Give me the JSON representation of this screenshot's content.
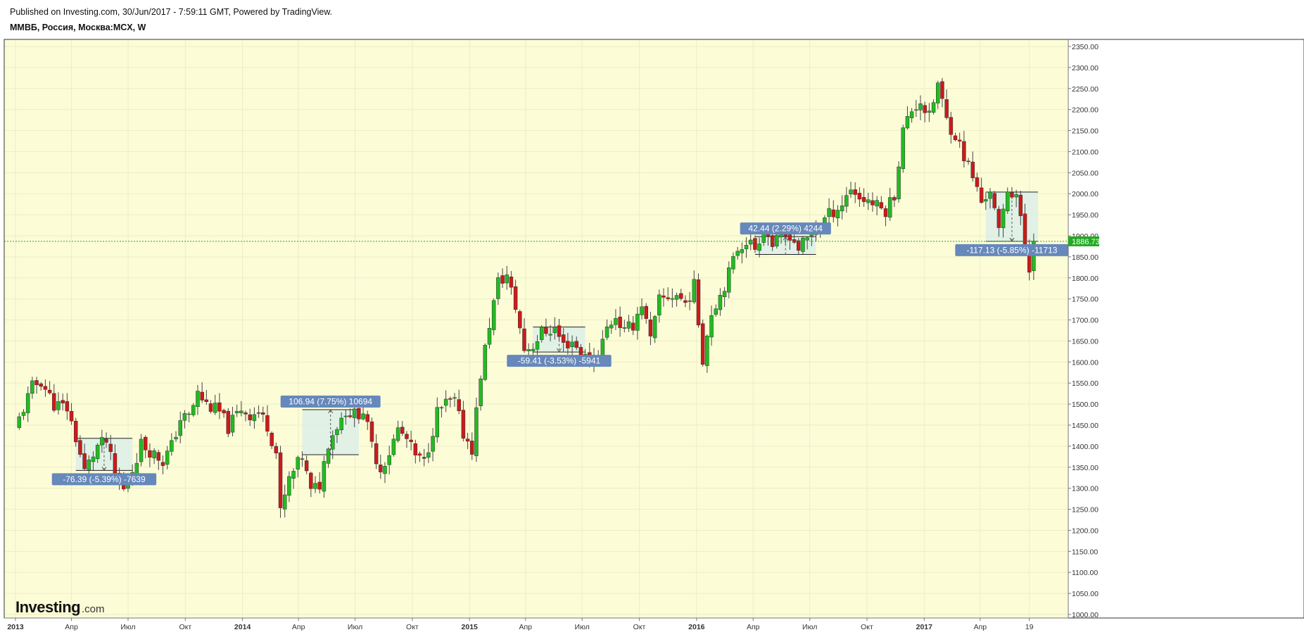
{
  "header": {
    "published": "Published on Investing.com, 30/Jun/2017 - 7:59:11 GMT, Powered by TradingView.",
    "symbol": "ММВБ, Россия, Москва:MCX, W"
  },
  "logo": {
    "main": "Investing",
    "suffix": ".com"
  },
  "colors": {
    "plot_background": "#fcfcd7",
    "grid": "#ededc6",
    "up": "#22bb22",
    "down": "#cc1a1a",
    "wick": "#444444",
    "last_price": "#22aa22",
    "measure_fill": "#dcefe8",
    "measure_label": "#6688bb"
  },
  "chart_data": {
    "type": "candlestick",
    "interval": "W",
    "ylim": [
      1000,
      2360
    ],
    "y_ticks": [
      1000,
      1050,
      1100,
      1150,
      1200,
      1250,
      1300,
      1350,
      1400,
      1450,
      1500,
      1550,
      1600,
      1650,
      1700,
      1750,
      1800,
      1850,
      1900,
      1950,
      2000,
      2050,
      2100,
      2150,
      2200,
      2250,
      2300,
      2350
    ],
    "y_tick_labels": [
      "1000.00",
      "1050.00",
      "1100.00",
      "1150.00",
      "1200.00",
      "1250.00",
      "1300.00",
      "1350.00",
      "1400.00",
      "1450.00",
      "1500.00",
      "1550.00",
      "1600.00",
      "1650.00",
      "1700.00",
      "1750.00",
      "1800.00",
      "1850.00",
      "1900.00",
      "1950.00",
      "2000.00",
      "2050.00",
      "2100.00",
      "2150.00",
      "2200.00",
      "2250.00",
      "2300.00",
      "2350.00"
    ],
    "x_range": [
      "2013-01-01",
      "2017-08-07"
    ],
    "x_ticks": [
      {
        "date": "2013-01-01",
        "label": "2013",
        "bold": true
      },
      {
        "date": "2013-04-01",
        "label": "Апр",
        "bold": false
      },
      {
        "date": "2013-07-01",
        "label": "Июл",
        "bold": false
      },
      {
        "date": "2013-10-01",
        "label": "Окт",
        "bold": false
      },
      {
        "date": "2014-01-01",
        "label": "2014",
        "bold": true
      },
      {
        "date": "2014-04-01",
        "label": "Апр",
        "bold": false
      },
      {
        "date": "2014-07-01",
        "label": "Июл",
        "bold": false
      },
      {
        "date": "2014-10-01",
        "label": "Окт",
        "bold": false
      },
      {
        "date": "2015-01-01",
        "label": "2015",
        "bold": true
      },
      {
        "date": "2015-04-01",
        "label": "Апр",
        "bold": false
      },
      {
        "date": "2015-07-01",
        "label": "Июл",
        "bold": false
      },
      {
        "date": "2015-10-01",
        "label": "Окт",
        "bold": false
      },
      {
        "date": "2016-01-01",
        "label": "2016",
        "bold": true
      },
      {
        "date": "2016-04-01",
        "label": "Апр",
        "bold": false
      },
      {
        "date": "2016-07-01",
        "label": "Июл",
        "bold": false
      },
      {
        "date": "2016-10-01",
        "label": "Окт",
        "bold": false
      },
      {
        "date": "2017-01-01",
        "label": "2017",
        "bold": true
      },
      {
        "date": "2017-04-01",
        "label": "Апр",
        "bold": false
      },
      {
        "date": "2017-06-19",
        "label": "19",
        "bold": false
      }
    ],
    "last_price": 1886.73,
    "last_price_label": "1886.73",
    "close_path": [
      [
        "2013-01-07",
        1465
      ],
      [
        "2013-01-28",
        1540
      ],
      [
        "2013-02-11",
        1555
      ],
      [
        "2013-03-04",
        1500
      ],
      [
        "2013-03-25",
        1490
      ],
      [
        "2013-04-08",
        1420
      ],
      [
        "2013-04-22",
        1340
      ],
      [
        "2013-05-13",
        1400
      ],
      [
        "2013-05-27",
        1410
      ],
      [
        "2013-06-10",
        1330
      ],
      [
        "2013-06-24",
        1295
      ],
      [
        "2013-07-08",
        1345
      ],
      [
        "2013-07-22",
        1405
      ],
      [
        "2013-08-05",
        1390
      ],
      [
        "2013-08-26",
        1365
      ],
      [
        "2013-09-09",
        1400
      ],
      [
        "2013-09-23",
        1465
      ],
      [
        "2013-10-07",
        1470
      ],
      [
        "2013-10-21",
        1525
      ],
      [
        "2013-11-04",
        1500
      ],
      [
        "2013-11-25",
        1480
      ],
      [
        "2013-12-09",
        1445
      ],
      [
        "2013-12-30",
        1490
      ],
      [
        "2014-01-13",
        1475
      ],
      [
        "2014-01-27",
        1480
      ],
      [
        "2014-02-10",
        1450
      ],
      [
        "2014-02-24",
        1385
      ],
      [
        "2014-03-03",
        1240
      ],
      [
        "2014-03-17",
        1320
      ],
      [
        "2014-04-07",
        1375
      ],
      [
        "2014-04-21",
        1290
      ],
      [
        "2014-05-05",
        1310
      ],
      [
        "2014-05-19",
        1410
      ],
      [
        "2014-06-02",
        1450
      ],
      [
        "2014-06-16",
        1485
      ],
      [
        "2014-06-30",
        1475
      ],
      [
        "2014-07-14",
        1485
      ],
      [
        "2014-07-28",
        1400
      ],
      [
        "2014-08-11",
        1345
      ],
      [
        "2014-08-25",
        1385
      ],
      [
        "2014-09-08",
        1440
      ],
      [
        "2014-09-22",
        1415
      ],
      [
        "2014-10-06",
        1375
      ],
      [
        "2014-10-20",
        1360
      ],
      [
        "2014-11-10",
        1480
      ],
      [
        "2014-11-24",
        1500
      ],
      [
        "2014-12-08",
        1505
      ],
      [
        "2014-12-22",
        1430
      ],
      [
        "2015-01-05",
        1395
      ],
      [
        "2015-01-19",
        1570
      ],
      [
        "2015-02-02",
        1690
      ],
      [
        "2015-02-16",
        1790
      ],
      [
        "2015-03-02",
        1805
      ],
      [
        "2015-03-16",
        1730
      ],
      [
        "2015-03-30",
        1630
      ],
      [
        "2015-04-13",
        1640
      ],
      [
        "2015-04-27",
        1670
      ],
      [
        "2015-05-18",
        1680
      ],
      [
        "2015-06-01",
        1640
      ],
      [
        "2015-06-15",
        1650
      ],
      [
        "2015-06-29",
        1620
      ],
      [
        "2015-07-13",
        1600
      ],
      [
        "2015-07-27",
        1620
      ],
      [
        "2015-08-10",
        1680
      ],
      [
        "2015-08-24",
        1710
      ],
      [
        "2015-09-07",
        1670
      ],
      [
        "2015-09-21",
        1690
      ],
      [
        "2015-10-05",
        1740
      ],
      [
        "2015-10-19",
        1650
      ],
      [
        "2015-11-02",
        1745
      ],
      [
        "2015-11-16",
        1755
      ],
      [
        "2015-11-30",
        1760
      ],
      [
        "2015-12-14",
        1740
      ],
      [
        "2015-12-28",
        1780
      ],
      [
        "2016-01-11",
        1610
      ],
      [
        "2016-01-25",
        1720
      ],
      [
        "2016-02-08",
        1760
      ],
      [
        "2016-02-22",
        1810
      ],
      [
        "2016-03-07",
        1870
      ],
      [
        "2016-03-21",
        1890
      ],
      [
        "2016-04-04",
        1870
      ],
      [
        "2016-04-18",
        1920
      ],
      [
        "2016-05-02",
        1880
      ],
      [
        "2016-05-16",
        1890
      ],
      [
        "2016-05-30",
        1905
      ],
      [
        "2016-06-13",
        1870
      ],
      [
        "2016-06-27",
        1890
      ],
      [
        "2016-07-11",
        1920
      ],
      [
        "2016-07-25",
        1940
      ],
      [
        "2016-08-08",
        1960
      ],
      [
        "2016-08-22",
        1975
      ],
      [
        "2016-09-05",
        2015
      ],
      [
        "2016-09-19",
        1990
      ],
      [
        "2016-10-03",
        1985
      ],
      [
        "2016-10-17",
        1970
      ],
      [
        "2016-10-31",
        1960
      ],
      [
        "2016-11-14",
        2000
      ],
      [
        "2016-11-28",
        2150
      ],
      [
        "2016-12-12",
        2200
      ],
      [
        "2016-12-26",
        2220
      ],
      [
        "2017-01-09",
        2180
      ],
      [
        "2017-01-23",
        2260
      ],
      [
        "2017-02-06",
        2175
      ],
      [
        "2017-02-20",
        2140
      ],
      [
        "2017-03-06",
        2090
      ],
      [
        "2017-03-20",
        2040
      ],
      [
        "2017-04-03",
        1980
      ],
      [
        "2017-04-17",
        2010
      ],
      [
        "2017-05-01",
        1905
      ],
      [
        "2017-05-15",
        2010
      ],
      [
        "2017-05-29",
        2000
      ],
      [
        "2017-06-12",
        1870
      ],
      [
        "2017-06-19",
        1820
      ],
      [
        "2017-06-26",
        1886.73
      ]
    ],
    "measurements": [
      {
        "start": "2013-04-08",
        "end": "2013-07-08",
        "from": 1418.7,
        "to": 1342.3,
        "label": "-76.39 (-5.39%) -7639"
      },
      {
        "start": "2014-04-07",
        "end": "2014-07-07",
        "from": 1379.8,
        "to": 1486.7,
        "label": "106.94 (7.75%) 10694"
      },
      {
        "start": "2015-04-13",
        "end": "2015-07-06",
        "from": 1683.2,
        "to": 1623.8,
        "label": "-59.41 (-3.53%) -5941"
      },
      {
        "start": "2016-04-04",
        "end": "2016-07-11",
        "from": 1855.6,
        "to": 1898.0,
        "label": "42.44 (2.29%) 4244"
      },
      {
        "start": "2017-04-10",
        "end": "2017-07-03",
        "from": 2003.8,
        "to": 1886.7,
        "label": "-117.13 (-5.85%) -11713"
      }
    ]
  }
}
